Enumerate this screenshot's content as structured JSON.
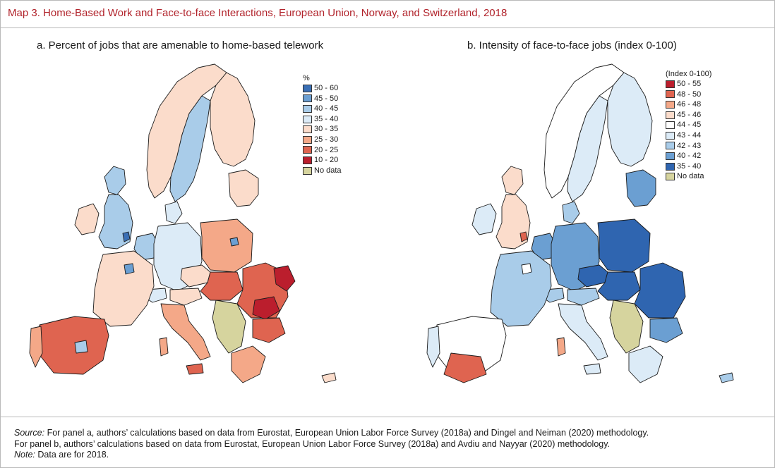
{
  "map_title": "Map 3. Home-Based Work and Face-to-face Interactions, European Union, Norway, and Switzerland, 2018",
  "panel_a": {
    "title": "a. Percent of jobs that are amenable to home-based telework",
    "legend_heading": "%",
    "legend": [
      {
        "label": "50 - 60",
        "color": "#3a6fb5"
      },
      {
        "label": "45 - 50",
        "color": "#6b9fd2"
      },
      {
        "label": "40 - 45",
        "color": "#a9cce9"
      },
      {
        "label": "35 - 40",
        "color": "#dcebf7"
      },
      {
        "label": "30 - 35",
        "color": "#fbdccb"
      },
      {
        "label": "25 - 30",
        "color": "#f4a888"
      },
      {
        "label": "20 - 25",
        "color": "#df6450"
      },
      {
        "label": "10 - 20",
        "color": "#bb1e2d"
      },
      {
        "label": "No data",
        "color": "#d6d49e"
      }
    ]
  },
  "panel_b": {
    "title": "b. Intensity of face-to-face jobs (index 0-100)",
    "legend_heading": "(Index 0-100)",
    "legend": [
      {
        "label": "50 - 55",
        "color": "#bb1e2d"
      },
      {
        "label": "48 - 50",
        "color": "#df6450"
      },
      {
        "label": "46 - 48",
        "color": "#f4a888"
      },
      {
        "label": "45 - 46",
        "color": "#fbdccb"
      },
      {
        "label": "44 - 45",
        "color": "#ffffff"
      },
      {
        "label": "43 - 44",
        "color": "#dcebf7"
      },
      {
        "label": "42 - 43",
        "color": "#a9cce9"
      },
      {
        "label": "40 - 42",
        "color": "#6b9fd2"
      },
      {
        "label": "35 - 40",
        "color": "#2f65b0"
      },
      {
        "label": "No data",
        "color": "#d6d49e"
      }
    ]
  },
  "footer": {
    "source_label": "Source:",
    "source_line1": "For panel a, authors’ calculations based on data from Eurostat, European Union Labor Force Survey (2018a) and Dingel and Neiman (2020) methodology.",
    "source_line2": "For panel b, authors’ calculations based on data from Eurostat, European Union Labor Force Survey (2018a) and Avdiu and Nayyar (2020) methodology.",
    "note_label": "Note:",
    "note_text": "Data are for 2018."
  }
}
